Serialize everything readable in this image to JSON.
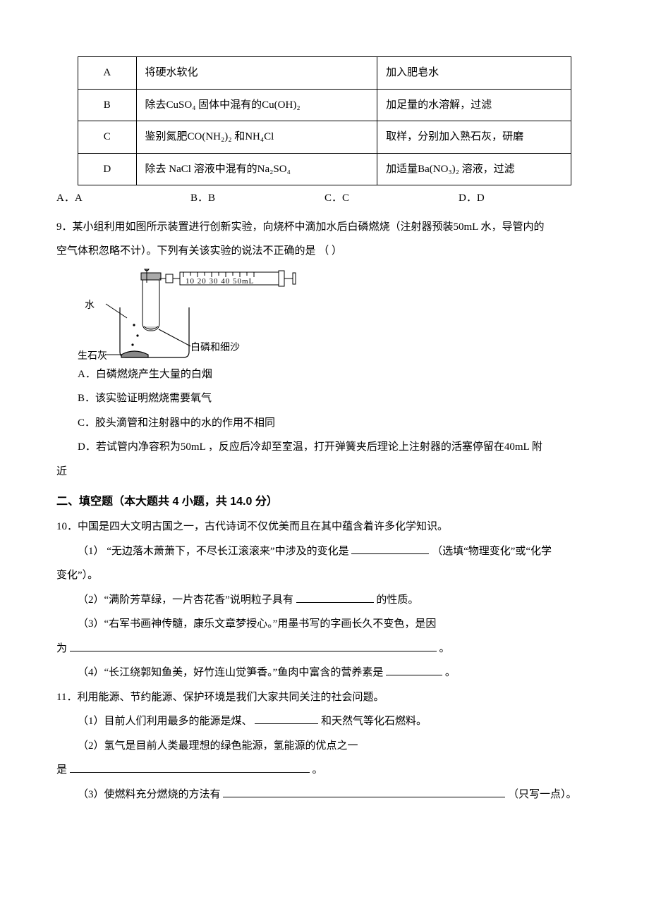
{
  "table": {
    "rows": [
      {
        "letter": "A",
        "desc": "将硬水软化",
        "method": "加入肥皂水"
      },
      {
        "letter": "B",
        "desc": "除去CuSO₄ 固体中混有的Cu(OH)₂",
        "method": "加足量的水溶解，过滤"
      },
      {
        "letter": "C",
        "desc": "鉴别氮肥CO(NH₂)₂ 和NH₄Cl",
        "method": "取样，分别加入熟石灰，研磨"
      },
      {
        "letter": "D",
        "desc": "除去 NaCl 溶液中混有的Na₂SO₄",
        "method": "加适量Ba(NO₃)₂ 溶液，过滤"
      }
    ]
  },
  "choices": {
    "a": "A．A",
    "b": "B．B",
    "c": "C．C",
    "d": "D．D"
  },
  "q9": {
    "stem1": "9．某小组利用如图所示装置进行创新实验，向烧杯中滴加水后白磷燃烧（注射器预装50mL 水，导管内的",
    "stem2": "空气体积忽略不计）。下列有关该实验的说法不正确的是   （        ）",
    "diagram": {
      "scale": "10 20 30  40 50mL",
      "water": "水",
      "lime": "生石灰",
      "phos": "白磷和细沙"
    },
    "A": "A．白磷燃烧产生大量的白烟",
    "B": "B．该实验证明燃烧需要氧气",
    "C": "C．胶头滴管和注射器中的水的作用不相同",
    "D1": "D．若试管内净容积为50mL ，反应后冷却至室温，打开弹簧夹后理论上注射器的活塞停留在40mL 附",
    "D2": "近"
  },
  "section2": "二、填空题（本大题共 4 小题，共 14.0 分）",
  "q10": {
    "stem": "10．中国是四大文明古国之一，古代诗词不仅优美而且在其中蕴含着许多化学知识。",
    "p1a": "（1）  “无边落木萧萧下，不尽长江滚滚来”中涉及的变化是 ",
    "p1b": "（选填“物理变化”或“化学",
    "p1c": "变化”）。",
    "p2a": "（2）“满阶芳草绿，一片杏花香”说明粒子具有 ",
    "p2b": " 的性质。",
    "p3a": "（3）“右军书画神传髓，康乐文章梦授心。”用墨书写的字画长久不变色，是因",
    "p3b": "为 ",
    "p3c": " 。",
    "p4a": "（4）“长江绕郭知鱼美，好竹连山觉笋香。”鱼肉中富含的营养素是 ",
    "p4b": " 。"
  },
  "q11": {
    "stem": "11．利用能源、节约能源、保护环境是我们大家共同关注的社会问题。",
    "p1a": "（1）目前人们利用最多的能源是煤、 ",
    "p1b": " 和天然气等化石燃料。",
    "p2": "（2）氢气是目前人类最理想的绿色能源，氢能源的优点之一",
    "p2b": "是 ",
    "p2c": " 。",
    "p3a": "（3）使燃料充分燃烧的方法有 ",
    "p3b": "（只写一点）。"
  },
  "style": {
    "blank_w_mid": "110px",
    "blank_w_long": "520px",
    "blank_w_short": "80px",
    "blank_w_90": "90px",
    "blank_w_340": "340px",
    "blank_w_400": "400px"
  }
}
